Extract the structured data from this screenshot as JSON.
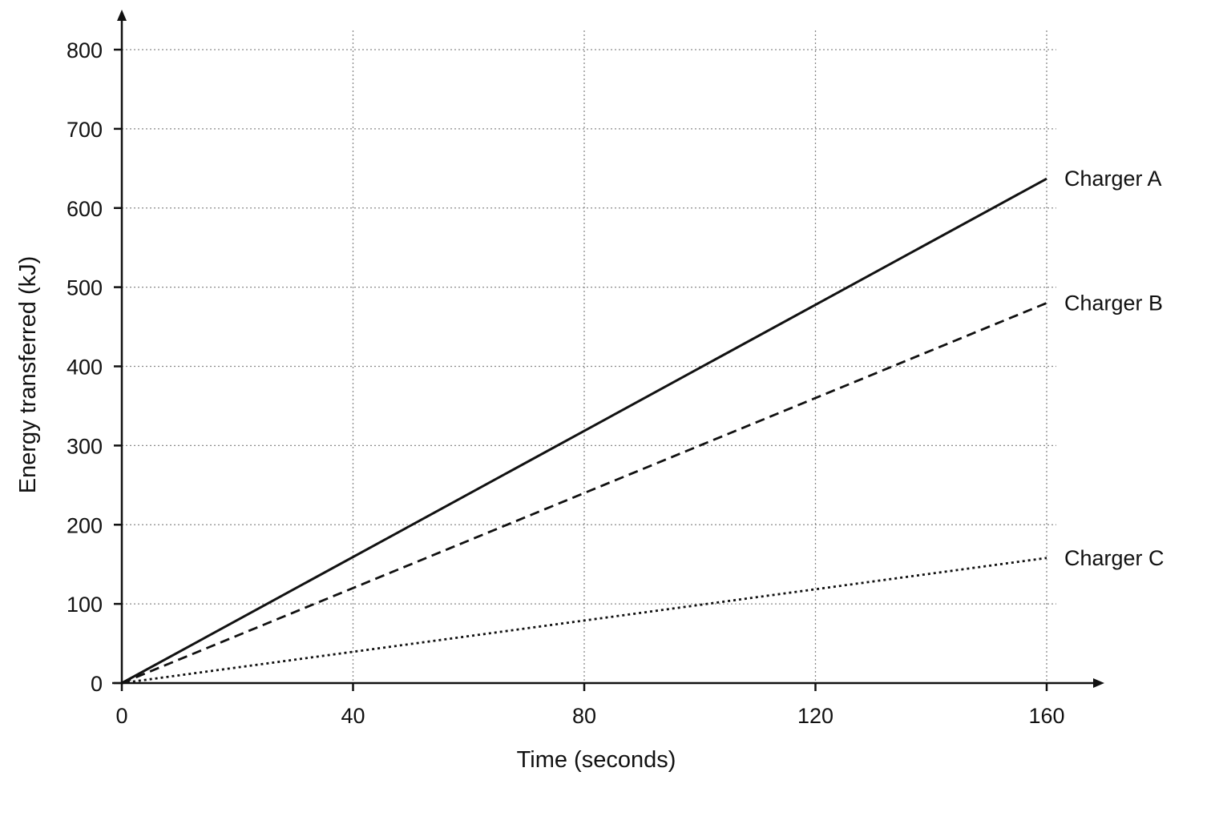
{
  "chart_data": {
    "type": "line",
    "xlabel": "Time (seconds)",
    "ylabel": "Energy transferred (kJ)",
    "xlim": [
      0,
      160
    ],
    "ylim": [
      0,
      800
    ],
    "xticks": [
      "0",
      "40",
      "80",
      "120",
      "160"
    ],
    "yticks": [
      "0",
      "100",
      "200",
      "300",
      "400",
      "500",
      "600",
      "700",
      "800"
    ],
    "grid": true,
    "series": [
      {
        "name": "Charger A",
        "style": "solid",
        "x": [
          0,
          160
        ],
        "y": [
          0,
          637
        ]
      },
      {
        "name": "Charger B",
        "style": "dashed",
        "x": [
          0,
          160
        ],
        "y": [
          0,
          480
        ]
      },
      {
        "name": "Charger C",
        "style": "dotted",
        "x": [
          0,
          160
        ],
        "y": [
          0,
          158
        ]
      }
    ]
  }
}
